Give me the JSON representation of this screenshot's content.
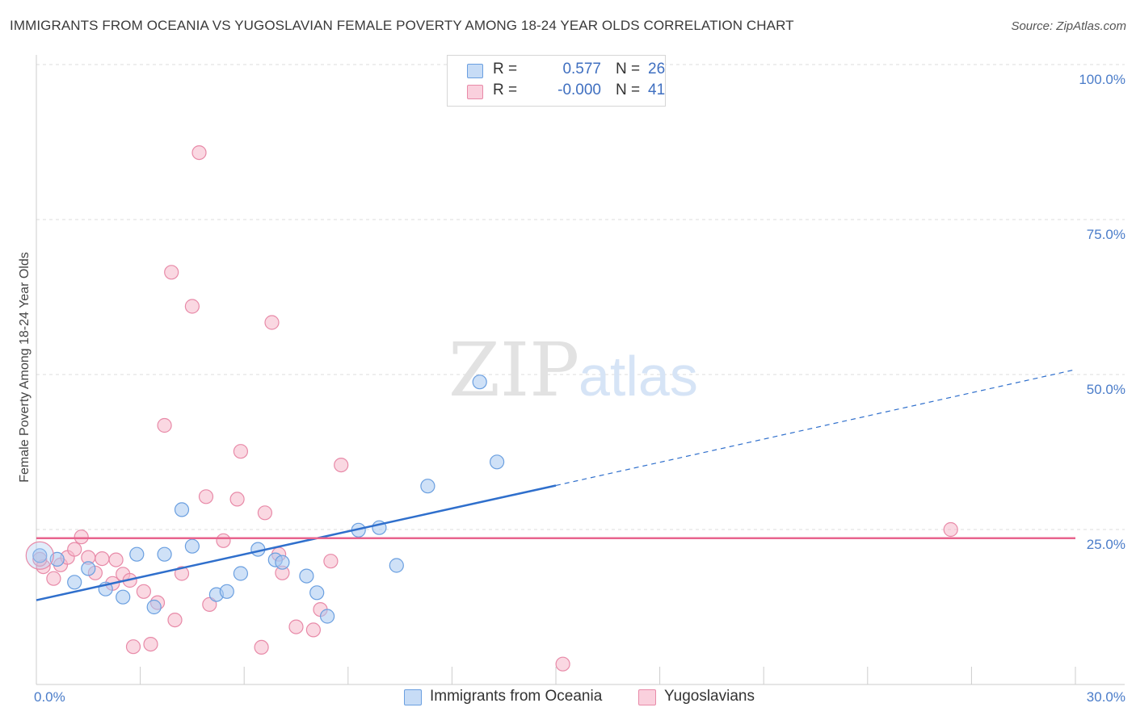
{
  "header": {
    "title": "IMMIGRANTS FROM OCEANIA VS YUGOSLAVIAN FEMALE POVERTY AMONG 18-24 YEAR OLDS CORRELATION CHART",
    "source": "Source: ZipAtlas.com"
  },
  "watermark": {
    "zip": "ZIP",
    "atlas": "atlas"
  },
  "legend": {
    "rows": [
      {
        "r_label": "R =",
        "r_value": "0.577",
        "n_label": "N =",
        "n_value": "26",
        "color": "#a8c8f0"
      },
      {
        "r_label": "R =",
        "r_value": "-0.000",
        "n_label": "N =",
        "n_value": "41",
        "color": "#f6b8cb"
      }
    ]
  },
  "bottom_legend": {
    "items": [
      {
        "label": "Immigrants from Oceania",
        "color": "#a8c8f0"
      },
      {
        "label": "Yugoslavians",
        "color": "#f6b8cb"
      }
    ]
  },
  "colors": {
    "blue_fill": "#a8c8f0",
    "blue_stroke": "#6a9fe0",
    "blue_line": "#2f6fcc",
    "pink_fill": "#f6b8cb",
    "pink_stroke": "#e88aa8",
    "pink_line": "#e8648e",
    "tick_text": "#4a7cc9",
    "grid": "#dddddd"
  },
  "chart_data": {
    "type": "scatter",
    "title": "IMMIGRANTS FROM OCEANIA VS YUGOSLAVIAN FEMALE POVERTY AMONG 18-24 YEAR OLDS CORRELATION CHART",
    "xlabel": "",
    "ylabel": "Female Poverty Among 18-24 Year Olds",
    "xlim": [
      0,
      30
    ],
    "ylim": [
      0,
      100
    ],
    "x_tick_labels": [
      "0.0%",
      "30.0%"
    ],
    "y_ticks": [
      25,
      50,
      75,
      100
    ],
    "y_tick_labels": [
      "25.0%",
      "50.0%",
      "75.0%",
      "100.0%"
    ],
    "grid": "horizontal dashed",
    "legend_position": "top-center",
    "series": [
      {
        "name": "Immigrants from Oceania",
        "r": 0.577,
        "n": 26,
        "points": [
          [
            0.1,
            20.8
          ],
          [
            0.6,
            20.2
          ],
          [
            1.1,
            16.5
          ],
          [
            1.5,
            18.7
          ],
          [
            2.0,
            15.4
          ],
          [
            2.5,
            14.1
          ],
          [
            2.9,
            21.0
          ],
          [
            3.4,
            12.5
          ],
          [
            3.7,
            21.0
          ],
          [
            4.2,
            28.2
          ],
          [
            4.5,
            22.3
          ],
          [
            5.2,
            14.5
          ],
          [
            5.5,
            15.0
          ],
          [
            5.9,
            17.9
          ],
          [
            6.4,
            21.8
          ],
          [
            6.9,
            20.1
          ],
          [
            7.1,
            19.7
          ],
          [
            7.8,
            17.5
          ],
          [
            8.1,
            14.8
          ],
          [
            8.4,
            11.0
          ],
          [
            9.3,
            24.9
          ],
          [
            9.9,
            25.3
          ],
          [
            10.4,
            19.2
          ],
          [
            11.3,
            32.0
          ],
          [
            12.8,
            48.8
          ],
          [
            13.3,
            35.9
          ]
        ],
        "trend": {
          "x_start": 0,
          "y_start": 13.6,
          "x_solid_end": 15.0,
          "y_solid_end": 32.1,
          "x_end": 30,
          "y_end": 50.8
        }
      },
      {
        "name": "Yugoslavians",
        "r": -0.0,
        "n": 41,
        "points": [
          [
            0.2,
            19.0
          ],
          [
            0.5,
            17.1
          ],
          [
            0.7,
            19.3
          ],
          [
            0.9,
            20.5
          ],
          [
            1.1,
            21.8
          ],
          [
            1.3,
            23.8
          ],
          [
            1.5,
            20.5
          ],
          [
            1.7,
            18.0
          ],
          [
            1.9,
            20.3
          ],
          [
            2.2,
            16.3
          ],
          [
            2.3,
            20.1
          ],
          [
            2.5,
            17.8
          ],
          [
            2.7,
            16.8
          ],
          [
            2.8,
            6.1
          ],
          [
            3.1,
            15.0
          ],
          [
            3.3,
            6.5
          ],
          [
            3.5,
            13.2
          ],
          [
            3.7,
            41.8
          ],
          [
            3.9,
            66.5
          ],
          [
            4.0,
            10.4
          ],
          [
            4.2,
            17.9
          ],
          [
            4.5,
            61.0
          ],
          [
            4.7,
            85.8
          ],
          [
            4.9,
            30.3
          ],
          [
            5.0,
            12.9
          ],
          [
            5.4,
            23.2
          ],
          [
            5.8,
            29.9
          ],
          [
            5.9,
            37.6
          ],
          [
            6.5,
            6.0
          ],
          [
            6.6,
            27.7
          ],
          [
            6.8,
            58.4
          ],
          [
            7.0,
            21.0
          ],
          [
            7.1,
            18.0
          ],
          [
            7.5,
            9.3
          ],
          [
            8.0,
            8.8
          ],
          [
            8.2,
            12.1
          ],
          [
            8.5,
            19.9
          ],
          [
            8.8,
            35.4
          ],
          [
            15.2,
            3.3
          ],
          [
            26.4,
            25.0
          ],
          [
            0.1,
            20.2
          ]
        ],
        "trend": {
          "x_start": 0,
          "y_start": 23.6,
          "x_end": 30,
          "y_end": 23.6
        }
      }
    ]
  }
}
